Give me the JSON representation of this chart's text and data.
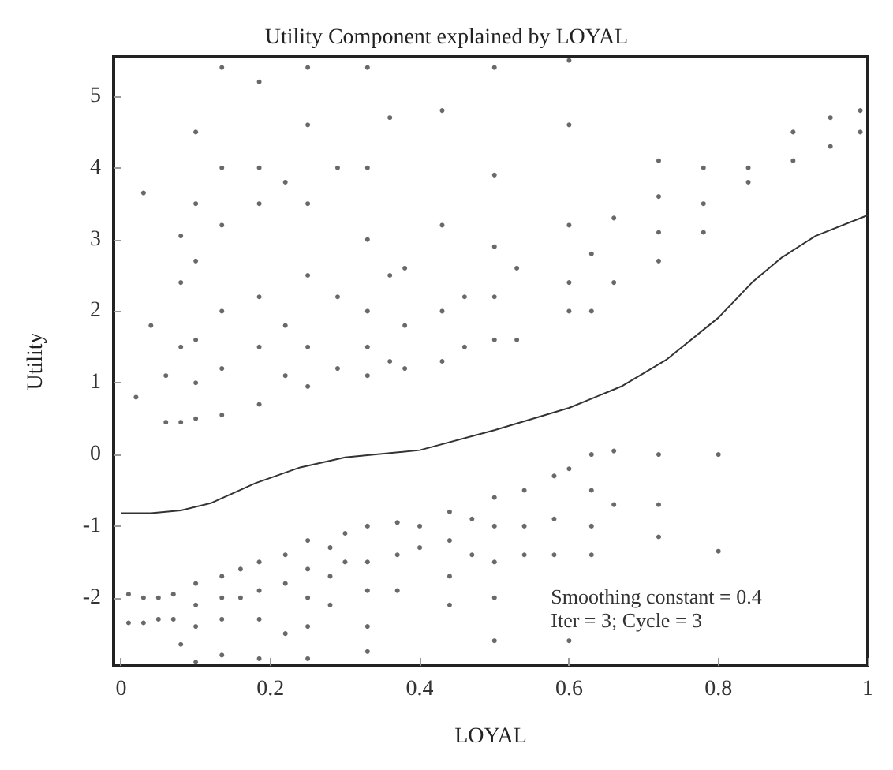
{
  "chart_data": {
    "type": "scatter",
    "title": "Utility Component explained by LOYAL",
    "xlabel": "LOYAL",
    "ylabel": "Utility",
    "xlim": [
      -0.01,
      1.0
    ],
    "ylim": [
      -2.95,
      5.55
    ],
    "xticks": [
      0,
      0.2,
      0.4,
      0.6,
      0.8,
      1
    ],
    "yticks": [
      -2,
      -1,
      0,
      1,
      2,
      3,
      4,
      5
    ],
    "grid": false,
    "annotations": [
      "Smoothing constant = 0.4",
      "Iter = 3; Cycle = 3"
    ],
    "series": [
      {
        "type": "scatter",
        "marker": "circle",
        "color": "#444444",
        "x": [
          0.02,
          0.03,
          0.04,
          0.06,
          0.06,
          0.08,
          0.08,
          0.08,
          0.08,
          0.1,
          0.1,
          0.1,
          0.1,
          0.1,
          0.1,
          0.135,
          0.135,
          0.135,
          0.135,
          0.135,
          0.135,
          0.185,
          0.185,
          0.185,
          0.185,
          0.185,
          0.185,
          0.22,
          0.22,
          0.22,
          0.25,
          0.25,
          0.25,
          0.25,
          0.25,
          0.25,
          0.29,
          0.29,
          0.29,
          0.33,
          0.33,
          0.33,
          0.33,
          0.33,
          0.33,
          0.36,
          0.36,
          0.36,
          0.38,
          0.38,
          0.38,
          0.43,
          0.43,
          0.43,
          0.43,
          0.46,
          0.46,
          0.5,
          0.5,
          0.5,
          0.5,
          0.5,
          0.53,
          0.53,
          0.6,
          0.6,
          0.6,
          0.6,
          0.6,
          0.63,
          0.63,
          0.66,
          0.66,
          0.72,
          0.72,
          0.72,
          0.72,
          0.78,
          0.78,
          0.78,
          0.84,
          0.84,
          0.9,
          0.9,
          0.95,
          0.95,
          0.99,
          0.99,
          0.01,
          0.01,
          0.03,
          0.03,
          0.05,
          0.05,
          0.07,
          0.07,
          0.08,
          0.1,
          0.1,
          0.1,
          0.1,
          0.135,
          0.135,
          0.135,
          0.135,
          0.16,
          0.16,
          0.185,
          0.185,
          0.185,
          0.185,
          0.22,
          0.22,
          0.22,
          0.25,
          0.25,
          0.25,
          0.25,
          0.25,
          0.28,
          0.28,
          0.28,
          0.3,
          0.3,
          0.33,
          0.33,
          0.33,
          0.33,
          0.33,
          0.37,
          0.37,
          0.37,
          0.4,
          0.4,
          0.44,
          0.44,
          0.44,
          0.44,
          0.47,
          0.47,
          0.5,
          0.5,
          0.5,
          0.5,
          0.5,
          0.54,
          0.54,
          0.54,
          0.58,
          0.58,
          0.58,
          0.6,
          0.6,
          0.63,
          0.63,
          0.63,
          0.63,
          0.66,
          0.66,
          0.72,
          0.72,
          0.72,
          0.8,
          0.8
        ],
        "values": [
          0.8,
          3.65,
          1.8,
          1.1,
          0.45,
          0.45,
          1.5,
          2.4,
          3.05,
          0.5,
          1.0,
          1.6,
          2.7,
          3.5,
          4.5,
          0.55,
          1.2,
          2.0,
          3.2,
          4.0,
          5.4,
          0.7,
          1.5,
          2.2,
          3.5,
          4.0,
          5.2,
          1.1,
          1.8,
          3.8,
          0.95,
          1.5,
          2.5,
          3.5,
          4.6,
          5.4,
          1.2,
          2.2,
          4.0,
          1.1,
          1.5,
          2.0,
          3.0,
          4.0,
          5.4,
          1.3,
          2.5,
          4.7,
          1.2,
          1.8,
          2.6,
          1.3,
          2.0,
          3.2,
          4.8,
          1.5,
          2.2,
          1.6,
          2.2,
          2.9,
          3.9,
          5.4,
          1.6,
          2.6,
          2.0,
          2.4,
          3.2,
          4.6,
          5.5,
          2.0,
          2.8,
          2.4,
          3.3,
          2.7,
          3.1,
          3.6,
          4.1,
          3.1,
          3.5,
          4.0,
          3.8,
          4.0,
          4.1,
          4.5,
          4.3,
          4.7,
          4.5,
          4.8,
          -1.95,
          -2.35,
          -2.0,
          -2.35,
          -2.0,
          -2.3,
          -1.95,
          -2.3,
          -2.65,
          -1.8,
          -2.1,
          -2.4,
          -2.9,
          -1.7,
          -2.0,
          -2.3,
          -2.8,
          -1.6,
          -2.0,
          -1.5,
          -1.9,
          -2.3,
          -2.85,
          -1.4,
          -1.8,
          -2.5,
          -1.2,
          -1.6,
          -2.0,
          -2.4,
          -2.85,
          -1.3,
          -1.7,
          -2.1,
          -1.1,
          -1.5,
          -1.0,
          -1.5,
          -1.9,
          -2.4,
          -2.75,
          -0.95,
          -1.4,
          -1.9,
          -1.0,
          -1.3,
          -0.8,
          -1.2,
          -1.7,
          -2.1,
          -0.9,
          -1.4,
          -0.6,
          -1.0,
          -1.5,
          -2.0,
          -2.6,
          -0.5,
          -1.0,
          -1.4,
          -0.3,
          -0.9,
          -1.4,
          -0.2,
          -2.6,
          0.0,
          -0.5,
          -1.0,
          -1.4,
          0.05,
          -0.7,
          0.0,
          -0.7,
          -1.15,
          0.0,
          -1.35
        ]
      },
      {
        "type": "line",
        "marker": "none",
        "color": "#333333",
        "x": [
          0,
          0.04,
          0.08,
          0.12,
          0.18,
          0.24,
          0.3,
          0.4,
          0.5,
          0.6,
          0.67,
          0.73,
          0.8,
          0.845,
          0.885,
          0.93,
          1.0
        ],
        "values": [
          -0.82,
          -0.82,
          -0.78,
          -0.68,
          -0.4,
          -0.18,
          -0.04,
          0.06,
          0.34,
          0.65,
          0.95,
          1.32,
          1.91,
          2.4,
          2.75,
          3.05,
          3.34
        ]
      }
    ]
  }
}
